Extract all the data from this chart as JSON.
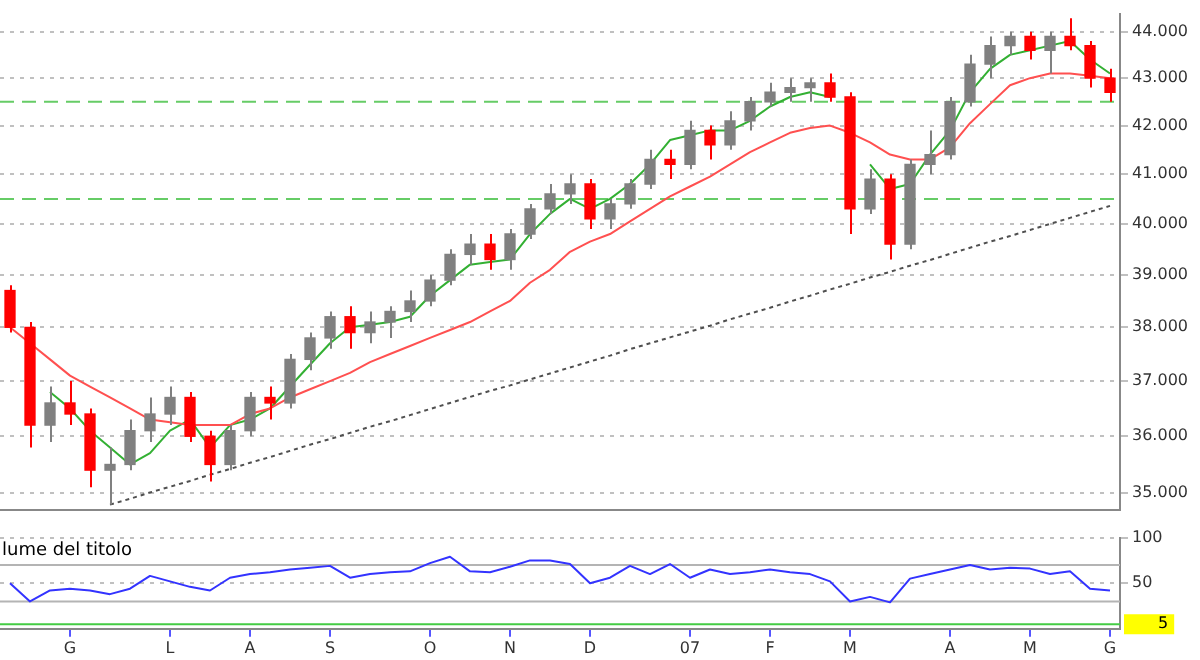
{
  "chart_data": [
    {
      "type": "candlestick",
      "log": "y",
      "grid": "y",
      "tick_labels": "y",
      "categories": [
        null,
        null,
        null,
        null,
        null,
        null,
        null,
        null,
        null,
        null,
        null,
        null,
        null,
        null,
        null,
        null,
        null,
        null,
        null,
        null,
        null,
        null,
        null,
        null,
        null,
        null,
        null,
        null,
        null,
        null,
        null,
        null,
        null,
        null,
        null,
        null,
        null,
        null,
        null,
        null,
        null,
        null,
        null,
        null,
        null,
        null,
        null,
        null,
        null,
        null,
        null,
        null,
        null,
        null,
        null,
        null
      ],
      "ylim": [
        34700,
        44400
      ],
      "yticks": [
        {
          "value": 44000,
          "label": "44.000"
        },
        {
          "value": 43000,
          "label": "43.000"
        },
        {
          "value": 42000,
          "label": "42.000"
        },
        {
          "value": 41000,
          "label": "41.000"
        },
        {
          "value": 40000,
          "label": "40.000"
        },
        {
          "value": 39000,
          "label": "39.000"
        },
        {
          "value": 38000,
          "label": "38.000"
        },
        {
          "value": 37000,
          "label": "37.000"
        },
        {
          "value": 36000,
          "label": "36.000"
        },
        {
          "value": 35000,
          "label": "35.000"
        }
      ],
      "ohlc": [
        [
          38700,
          38800,
          37900,
          38000
        ],
        [
          38000,
          38100,
          35800,
          36200
        ],
        [
          36200,
          36900,
          35900,
          36600
        ],
        [
          36600,
          37000,
          36200,
          36400
        ],
        [
          36400,
          36500,
          35100,
          35400
        ],
        [
          35400,
          35800,
          34800,
          35500
        ],
        [
          35500,
          36300,
          35400,
          36100
        ],
        [
          36100,
          36700,
          35900,
          36400
        ],
        [
          36400,
          36900,
          36200,
          36700
        ],
        [
          36700,
          36800,
          35900,
          36000
        ],
        [
          36000,
          36100,
          35200,
          35500
        ],
        [
          35500,
          36200,
          35400,
          36100
        ],
        [
          36100,
          36800,
          36000,
          36700
        ],
        [
          36700,
          36900,
          36300,
          36600
        ],
        [
          36600,
          37500,
          36500,
          37400
        ],
        [
          37400,
          37900,
          37200,
          37800
        ],
        [
          37800,
          38300,
          37600,
          38200
        ],
        [
          38200,
          38400,
          37600,
          37900
        ],
        [
          37900,
          38300,
          37700,
          38100
        ],
        [
          38100,
          38400,
          37800,
          38300
        ],
        [
          38300,
          38700,
          38100,
          38500
        ],
        [
          38500,
          39000,
          38400,
          38900
        ],
        [
          38900,
          39500,
          38800,
          39400
        ],
        [
          39400,
          39800,
          39200,
          39600
        ],
        [
          39600,
          39800,
          39100,
          39300
        ],
        [
          39300,
          39900,
          39100,
          39800
        ],
        [
          39800,
          40400,
          39700,
          40300
        ],
        [
          40300,
          40800,
          40200,
          40600
        ],
        [
          40600,
          41000,
          40400,
          40800
        ],
        [
          40800,
          40900,
          39900,
          40100
        ],
        [
          40100,
          40500,
          39900,
          40400
        ],
        [
          40400,
          40900,
          40300,
          40800
        ],
        [
          40800,
          41500,
          40700,
          41300
        ],
        [
          41300,
          41500,
          40900,
          41200
        ],
        [
          41200,
          42100,
          41100,
          41900
        ],
        [
          41900,
          42000,
          41300,
          41600
        ],
        [
          41600,
          42300,
          41500,
          42100
        ],
        [
          42100,
          42600,
          41900,
          42500
        ],
        [
          42500,
          42900,
          42400,
          42700
        ],
        [
          42700,
          43000,
          42500,
          42800
        ],
        [
          42800,
          43000,
          42500,
          42900
        ],
        [
          42900,
          43100,
          42500,
          42600
        ],
        [
          42600,
          42700,
          39800,
          40300
        ],
        [
          40300,
          41100,
          40200,
          40900
        ],
        [
          40900,
          41000,
          39300,
          39600
        ],
        [
          39600,
          41300,
          39500,
          41200
        ],
        [
          41200,
          41900,
          41000,
          41400
        ],
        [
          41400,
          42600,
          41300,
          42500
        ],
        [
          42500,
          43500,
          42400,
          43300
        ],
        [
          43300,
          43900,
          43000,
          43700
        ],
        [
          43700,
          44000,
          43500,
          43900
        ],
        [
          43900,
          44000,
          43400,
          43600
        ],
        [
          43600,
          44000,
          43100,
          43900
        ],
        [
          43900,
          44300,
          43600,
          43700
        ],
        [
          43700,
          43800,
          42800,
          43000
        ],
        [
          43000,
          43200,
          42500,
          42700
        ]
      ],
      "colors": [
        "#ff0000",
        "#ff0000",
        "#808080",
        "#ff0000",
        "#ff0000",
        "#808080",
        "#808080",
        "#808080",
        "#808080",
        "#ff0000",
        "#ff0000",
        "#808080",
        "#808080",
        "#ff0000",
        "#808080",
        "#808080",
        "#808080",
        "#ff0000",
        "#808080",
        "#808080",
        "#808080",
        "#808080",
        "#808080",
        "#808080",
        "#ff0000",
        "#808080",
        "#808080",
        "#808080",
        "#808080",
        "#ff0000",
        "#808080",
        "#808080",
        "#808080",
        "#ff0000",
        "#808080",
        "#ff0000",
        "#808080",
        "#808080",
        "#808080",
        "#808080",
        "#808080",
        "#ff0000",
        "#ff0000",
        "#808080",
        "#ff0000",
        "#808080",
        "#808080",
        "#808080",
        "#808080",
        "#808080",
        "#808080",
        "#ff0000",
        "#808080",
        "#ff0000",
        "#ff0000",
        "#ff0000"
      ],
      "series": [
        {
          "type": "line",
          "color": "#ff5050",
          "values": [
            38000,
            37700,
            37400,
            37100,
            36900,
            36700,
            36500,
            36300,
            36250,
            36200,
            36200,
            36200,
            36400,
            36500,
            36700,
            36850,
            37000,
            37150,
            37350,
            37500,
            37650,
            37800,
            37950,
            38100,
            38300,
            38500,
            38850,
            39100,
            39450,
            39650,
            39800,
            40050,
            40300,
            40550,
            40750,
            40950,
            41200,
            41450,
            41650,
            41850,
            41950,
            42000,
            41850,
            41650,
            41400,
            41300,
            41300,
            41550,
            42050,
            42450,
            42850,
            43000,
            43100,
            43100,
            43050,
            43000
          ]
        },
        {
          "type": "line",
          "color": "#33b033",
          "values": [
            null,
            null,
            36800,
            36500,
            36100,
            35800,
            35500,
            35700,
            36100,
            36300,
            35800,
            36200,
            36300,
            36500,
            36900,
            37300,
            37700,
            38000,
            38050,
            38100,
            38200,
            38600,
            38900,
            39200,
            39250,
            39300,
            39800,
            40200,
            40500,
            40300,
            40500,
            40800,
            41200,
            41700,
            41800,
            41900,
            41900,
            42100,
            42400,
            42600,
            42700,
            42600,
            null,
            41200,
            40700,
            40800,
            41400,
            41900,
            42700,
            43200,
            43500,
            43600,
            43700,
            43800,
            43400,
            43100
          ]
        },
        {
          "type": "line",
          "color": "#505050",
          "line_style": "dotted",
          "values": [
            null,
            null,
            null,
            null,
            null,
            34800,
            34900,
            35010,
            35110,
            35210,
            35320,
            35420,
            35530,
            35630,
            35740,
            35850,
            35950,
            36060,
            36170,
            36270,
            36380,
            36490,
            36600,
            36710,
            36820,
            36920,
            37030,
            37140,
            37250,
            37360,
            37470,
            37590,
            37700,
            37810,
            37920,
            38030,
            38150,
            38260,
            38370,
            38490,
            38600,
            38720,
            38830,
            38950,
            39060,
            39180,
            39290,
            39410,
            39530,
            39650,
            39760,
            39880,
            40000,
            40120,
            40240,
            40360
          ]
        }
      ],
      "ref_lines": [
        {
          "axis": "y",
          "value": 42500,
          "color": "#66cc66",
          "line_style": "dashed"
        },
        {
          "axis": "y",
          "value": 40500,
          "color": "#66cc66",
          "line_style": "dashed"
        }
      ]
    },
    {
      "type": "line",
      "title": "lume del titolo",
      "grid": "y",
      "categories": [
        null,
        null,
        null,
        "G",
        null,
        null,
        null,
        null,
        "L",
        null,
        null,
        null,
        "A",
        null,
        null,
        null,
        "S",
        null,
        null,
        null,
        null,
        "O",
        null,
        null,
        null,
        "N",
        null,
        null,
        null,
        "D",
        null,
        null,
        null,
        null,
        "07",
        null,
        null,
        null,
        "F",
        null,
        null,
        null,
        "M",
        null,
        null,
        null,
        null,
        "A",
        null,
        null,
        null,
        "M",
        null,
        null,
        null,
        "G"
      ],
      "ylim": [
        0,
        100
      ],
      "yticks": [
        50,
        100
      ],
      "series": [
        {
          "color": "#3333ff",
          "values": [
            50,
            30,
            42,
            44,
            42,
            38,
            44,
            58,
            52,
            46,
            42,
            56,
            60,
            62,
            65,
            67,
            69,
            56,
            60,
            62,
            63,
            72,
            79,
            63,
            62,
            68,
            75,
            75,
            71,
            50,
            56,
            69,
            60,
            71,
            56,
            65,
            60,
            62,
            65,
            62,
            60,
            52,
            30,
            35,
            29,
            55,
            60,
            65,
            70,
            65,
            67,
            66,
            60,
            63,
            44,
            42
          ]
        }
      ],
      "ref_lines": [
        {
          "axis": "y",
          "value": 70,
          "color": "#b4b4b4",
          "line_style": "solid"
        },
        {
          "axis": "y",
          "value": 30,
          "color": "#b4b4b4",
          "line_style": "solid"
        },
        {
          "axis": "y",
          "value": 5,
          "color": "#44cc44",
          "line_style": "solid",
          "label": "5"
        }
      ]
    }
  ]
}
